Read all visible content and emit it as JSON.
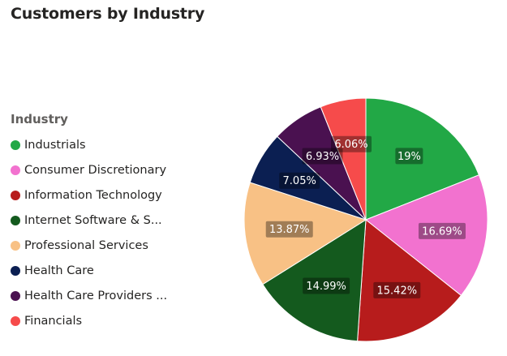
{
  "title": "Customers by Industry",
  "chart_data": {
    "type": "pie",
    "title": "Customers by Industry",
    "legend_title": "Industry",
    "legend_position": "left",
    "slices": [
      {
        "name": "Industrials",
        "legend_label": "Industrials",
        "value": 19.0,
        "label": "19%",
        "color": "#22A846"
      },
      {
        "name": "Consumer Discretionary",
        "legend_label": "Consumer Discretionary",
        "value": 16.69,
        "label": "16.69%",
        "color": "#F272CF"
      },
      {
        "name": "Information Technology",
        "legend_label": "Information Technology",
        "value": 15.42,
        "label": "15.42%",
        "color": "#B71C1C"
      },
      {
        "name": "Internet Software & Services",
        "legend_label": "Internet Software & S...",
        "value": 14.99,
        "label": "14.99%",
        "color": "#145A1E"
      },
      {
        "name": "Professional Services",
        "legend_label": "Professional Services",
        "value": 13.87,
        "label": "13.87%",
        "color": "#F8C185"
      },
      {
        "name": "Health Care",
        "legend_label": "Health Care",
        "value": 7.05,
        "label": "7.05%",
        "color": "#0B1F52"
      },
      {
        "name": "Health Care Providers & Services",
        "legend_label": "Health Care Providers ...",
        "value": 6.93,
        "label": "6.93%",
        "color": "#4A1150"
      },
      {
        "name": "Financials",
        "legend_label": "Financials",
        "value": 6.06,
        "label": "6.06%",
        "color": "#F64B4B"
      }
    ]
  }
}
